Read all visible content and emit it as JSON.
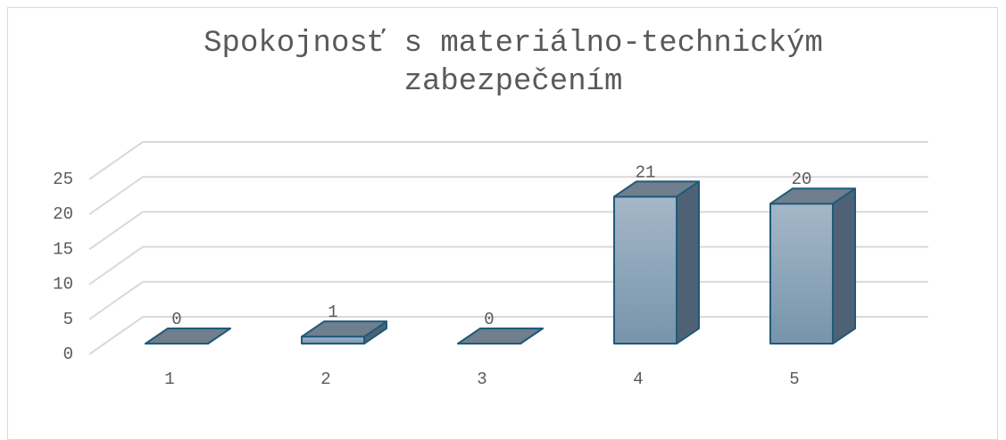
{
  "chart_data": {
    "type": "bar",
    "title": "Spokojnosť s materiálno-technickým zabezpečením",
    "categories": [
      "1",
      "2",
      "3",
      "4",
      "5"
    ],
    "values": [
      0,
      1,
      0,
      21,
      20
    ],
    "color": "#8fa6ba",
    "ylim": [
      0,
      25
    ],
    "yticks": [
      0,
      5,
      10,
      15,
      20,
      25
    ],
    "grid": true
  }
}
